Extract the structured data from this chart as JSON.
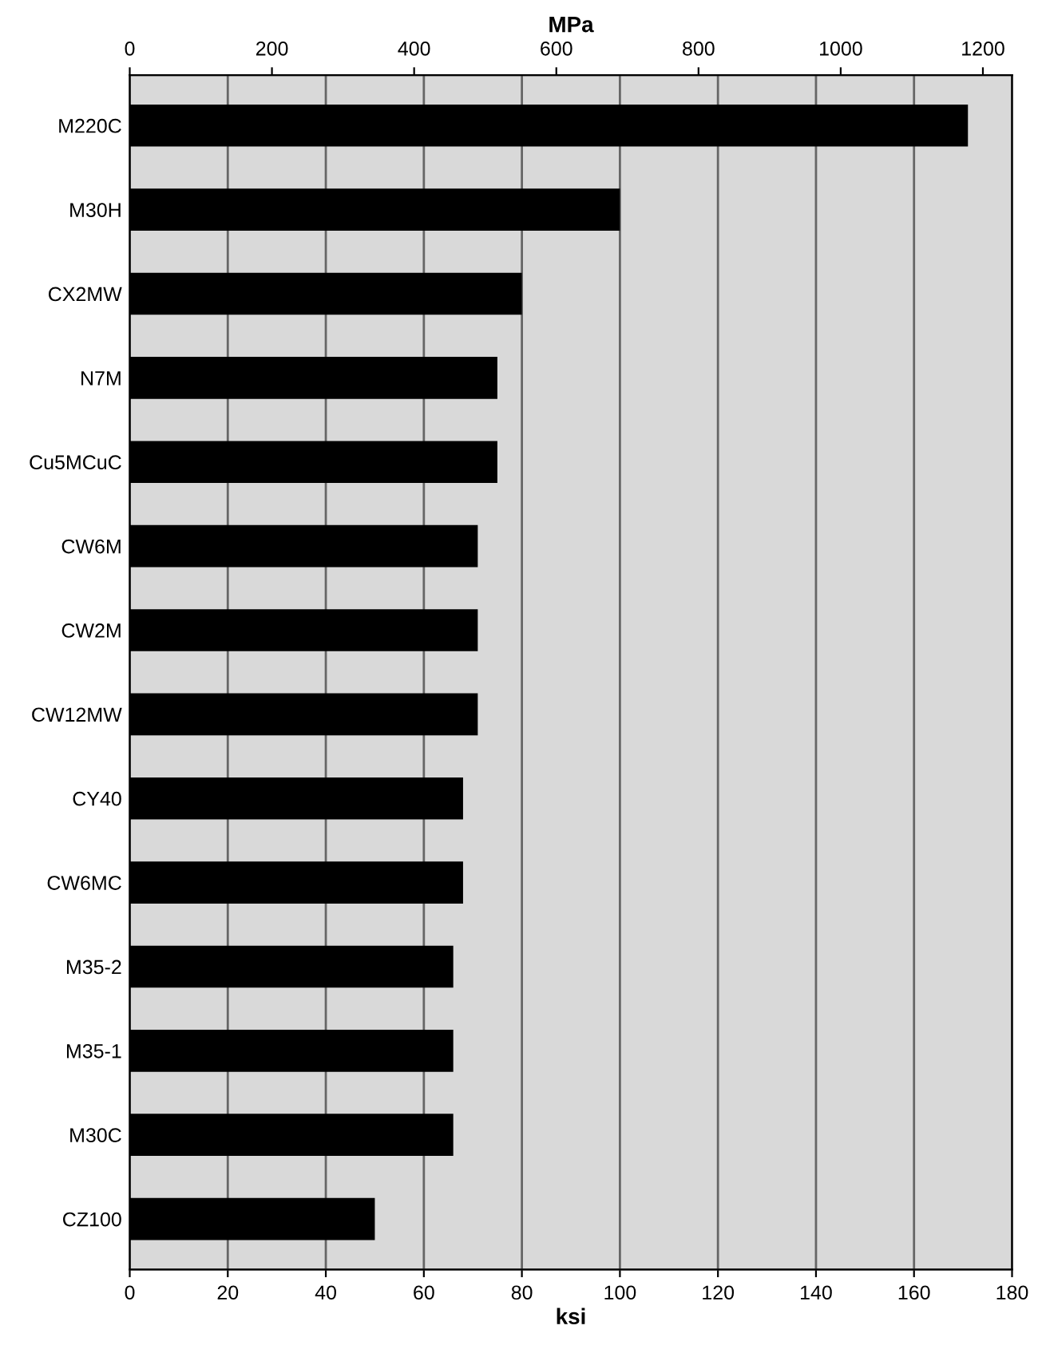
{
  "chart_data": {
    "type": "bar",
    "orientation": "horizontal",
    "xlabel": "ksi",
    "x2label": "MPa",
    "categories": [
      "M220C",
      "M30H",
      "CX2MW",
      "N7M",
      "Cu5MCuC",
      "CW6M",
      "CW2M",
      "CW12MW",
      "CY40",
      "CW6MC",
      "M35-2",
      "M35-1",
      "M30C",
      "CZ100"
    ],
    "values": [
      171,
      100,
      80,
      75,
      75,
      71,
      71,
      71,
      68,
      68,
      66,
      66,
      66,
      50
    ],
    "color": "#000000",
    "xlim": [
      0,
      180
    ],
    "xticks": [
      0,
      20,
      40,
      60,
      80,
      100,
      120,
      140,
      160,
      180
    ],
    "x2lim": [
      0,
      1241
    ],
    "x2ticks": [
      0,
      200,
      400,
      600,
      800,
      1000,
      1200
    ],
    "grid": "x"
  }
}
